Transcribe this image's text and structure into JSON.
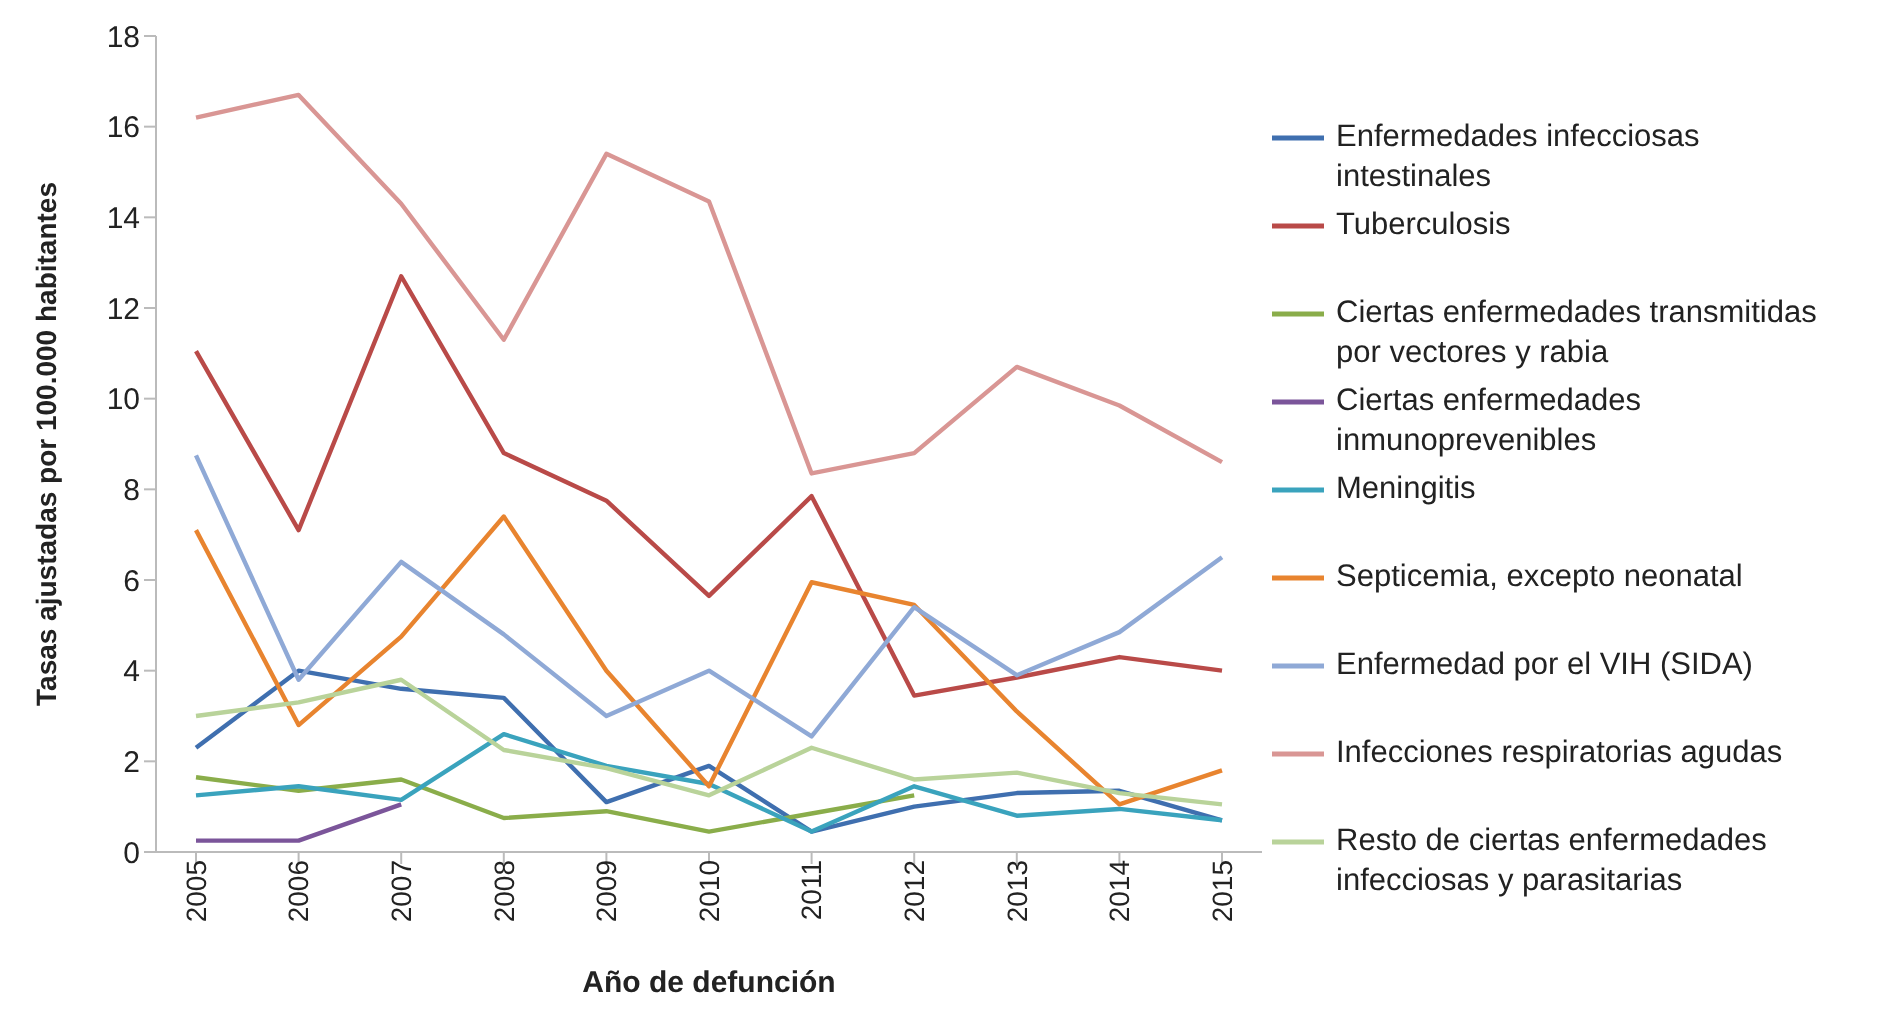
{
  "chart_data": {
    "type": "line",
    "xlabel": "Año de defunción",
    "ylabel": "Tasas ajustadas por 100.000 habitantes",
    "categories": [
      "2005",
      "2006",
      "2007",
      "2008",
      "2009",
      "2010",
      "2011",
      "2012",
      "2013",
      "2014",
      "2015"
    ],
    "ylim": [
      0,
      18
    ],
    "yticks": [
      0,
      2,
      4,
      6,
      8,
      10,
      12,
      14,
      16,
      18
    ],
    "grid": false,
    "legend": "right",
    "marker": "none",
    "series": [
      {
        "name": "Enfermedades infecciosas intestinales",
        "color": "#3f6faf",
        "values": [
          2.3,
          4.0,
          3.6,
          3.4,
          1.1,
          1.9,
          0.45,
          1.0,
          1.3,
          1.35,
          0.7
        ]
      },
      {
        "name": "Tuberculosis",
        "color": "#b94a48",
        "values": [
          11.05,
          7.1,
          12.7,
          8.8,
          7.75,
          5.65,
          7.85,
          3.45,
          3.85,
          4.3,
          4.0
        ]
      },
      {
        "name": "Ciertas enfermedades transmitidas por vectores y rabia",
        "color": "#8aad4a",
        "values": [
          1.65,
          1.35,
          1.6,
          0.75,
          0.9,
          0.45,
          0.85,
          1.25,
          null,
          null,
          null
        ]
      },
      {
        "name": "Ciertas enfermedades inmunoprevenibles",
        "color": "#7b559a",
        "values": [
          0.25,
          0.25,
          1.05,
          null,
          null,
          null,
          null,
          null,
          null,
          null,
          null
        ]
      },
      {
        "name": "Meningitis",
        "color": "#3aa3bd",
        "values": [
          1.25,
          1.45,
          1.15,
          2.6,
          1.9,
          1.5,
          0.45,
          1.45,
          0.8,
          0.95,
          0.7
        ]
      },
      {
        "name": "Septicemia, excepto neonatal",
        "color": "#e8842f",
        "values": [
          7.1,
          2.8,
          4.75,
          7.4,
          4.0,
          1.45,
          5.95,
          5.45,
          3.1,
          1.05,
          1.8
        ]
      },
      {
        "name": "Enfermedad por el VIH (SIDA)",
        "color": "#8fa9d6",
        "values": [
          8.75,
          3.8,
          6.4,
          4.8,
          3.0,
          4.0,
          2.55,
          5.4,
          3.9,
          4.85,
          6.5
        ]
      },
      {
        "name": "Infecciones respiratorias agudas",
        "color": "#d99694",
        "values": [
          16.2,
          16.7,
          14.3,
          11.3,
          15.4,
          14.35,
          8.35,
          8.8,
          10.7,
          9.85,
          8.6
        ]
      },
      {
        "name": "Resto de ciertas enfermedades infecciosas y parasitarias",
        "color": "#b9d39a",
        "values": [
          3.0,
          3.3,
          3.8,
          2.25,
          1.85,
          1.25,
          2.3,
          1.6,
          1.75,
          1.3,
          1.05
        ]
      }
    ]
  }
}
